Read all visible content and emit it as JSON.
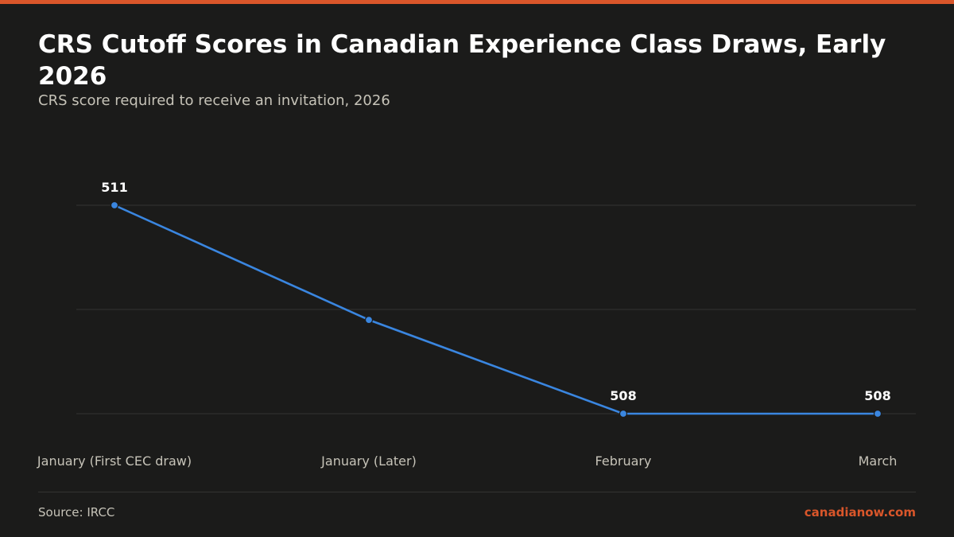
{
  "header": {
    "title": "CRS Cutoff Scores in Canadian Experience Class Draws, Early 2026",
    "subtitle": "CRS score required to receive an invitation, 2026"
  },
  "footer": {
    "source": "Source: IRCC",
    "brand": "canadianow.com"
  },
  "colors": {
    "background": "#1b1b1a",
    "accent": "#d9562a",
    "line": "#3a86e0",
    "grid": "#333331",
    "text": "#ffffff",
    "muted": "#c6c3b8"
  },
  "chart_data": {
    "type": "line",
    "categories": [
      "January (First CEC draw)",
      "January (Later)",
      "February",
      "March"
    ],
    "series": [
      {
        "values": [
          511,
          509.35,
          508,
          508
        ]
      }
    ],
    "data_labels": [
      "511",
      "",
      "508",
      "508"
    ],
    "ylim": [
      508,
      511
    ],
    "grid": true,
    "legend": "none"
  }
}
